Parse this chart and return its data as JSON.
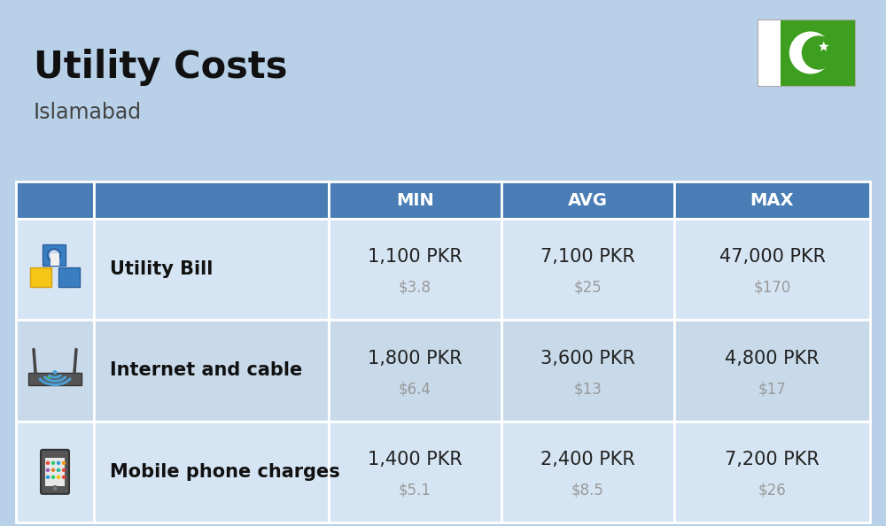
{
  "title": "Utility Costs",
  "subtitle": "Islamabad",
  "background_color": "#b8d0e8",
  "header_color": "#4a7db5",
  "header_text_color": "#ffffff",
  "row_color_1": "#d6e5f3",
  "row_color_2": "#c8daea",
  "separator_color": "#ffffff",
  "rows": [
    {
      "label": "Utility Bill",
      "min_pkr": "1,100 PKR",
      "min_usd": "$3.8",
      "avg_pkr": "7,100 PKR",
      "avg_usd": "$25",
      "max_pkr": "47,000 PKR",
      "max_usd": "$170"
    },
    {
      "label": "Internet and cable",
      "min_pkr": "1,800 PKR",
      "min_usd": "$6.4",
      "avg_pkr": "3,600 PKR",
      "avg_usd": "$13",
      "max_pkr": "4,800 PKR",
      "max_usd": "$17"
    },
    {
      "label": "Mobile phone charges",
      "min_pkr": "1,400 PKR",
      "min_usd": "$5.1",
      "avg_pkr": "2,400 PKR",
      "avg_usd": "$8.5",
      "max_pkr": "7,200 PKR",
      "max_usd": "$26"
    }
  ],
  "title_fontsize": 30,
  "subtitle_fontsize": 17,
  "header_fontsize": 14,
  "label_fontsize": 15,
  "value_fontsize": 15,
  "usd_fontsize": 12,
  "usd_color": "#999999",
  "label_color": "#111111",
  "value_color": "#222222",
  "flag_green": "#3d9e1f",
  "flag_white": "#ffffff"
}
